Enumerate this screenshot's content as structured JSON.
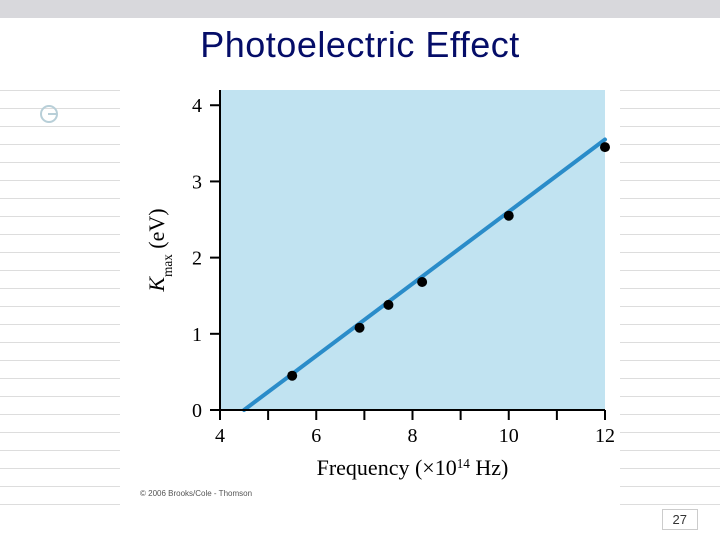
{
  "slide": {
    "title": "Photoelectric Effect",
    "title_color": "#050d68",
    "title_fontsize": 36,
    "page_number": "27",
    "copyright": "© 2006 Brooks/Cole - Thomson"
  },
  "chart": {
    "type": "scatter_line",
    "plot_bg": "#c1e3f1",
    "page_bg": "#ffffff",
    "axis_color": "#000000",
    "axis_width": 2,
    "tick_len": 10,
    "x": {
      "label": "Frequency (×10",
      "label_exp": "14",
      "label_tail": " Hz)",
      "label_fontsize": 22,
      "ticks": [
        4,
        5,
        6,
        7,
        8,
        9,
        10,
        11,
        12
      ],
      "tick_labels": [
        "4",
        "",
        "6",
        "",
        "8",
        "",
        "10",
        "",
        "12"
      ],
      "min": 4,
      "max": 12
    },
    "y": {
      "label_pre": "K",
      "label_sub": "max",
      "label_post": " (eV)",
      "label_fontsize": 22,
      "ticks": [
        0,
        1,
        2,
        3,
        4
      ],
      "tick_labels": [
        "0",
        "1",
        "2",
        "3",
        "4"
      ],
      "min": 0,
      "max": 4.2
    },
    "line": {
      "color": "#2a8cc9",
      "width": 4,
      "x1": 4.5,
      "y1": 0.0,
      "x2": 12.0,
      "y2": 3.55
    },
    "points": {
      "color": "#000000",
      "radius": 5,
      "data": [
        {
          "x": 5.5,
          "y": 0.45
        },
        {
          "x": 6.9,
          "y": 1.08
        },
        {
          "x": 7.5,
          "y": 1.38
        },
        {
          "x": 8.2,
          "y": 1.68
        },
        {
          "x": 10.0,
          "y": 2.55
        },
        {
          "x": 12.0,
          "y": 3.45
        }
      ]
    },
    "tick_fontsize": 20
  },
  "decor": {
    "rule_color": "#dddddd"
  }
}
